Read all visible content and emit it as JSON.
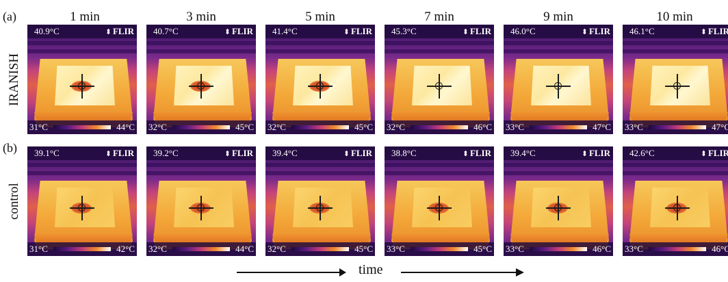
{
  "panel_a": "(a)",
  "panel_b": "(b)",
  "columns": [
    "1 min",
    "3 min",
    "5 min",
    "7 min",
    "9 min",
    "10 min"
  ],
  "rows": [
    {
      "label": "IRANISH",
      "variant": "iranish",
      "frames": [
        {
          "temp": "40.9°C",
          "logo": "FLIR",
          "scale_min": "31°C",
          "scale_max": "44°C",
          "spot": true
        },
        {
          "temp": "40.7°C",
          "logo": "FLIR",
          "scale_min": "32°C",
          "scale_max": "45°C",
          "spot": true
        },
        {
          "temp": "41.4°C",
          "logo": "FLIR",
          "scale_min": "32°C",
          "scale_max": "45°C",
          "spot": true
        },
        {
          "temp": "45.3°C",
          "logo": "FLIR",
          "scale_min": "32°C",
          "scale_max": "46°C",
          "spot": false
        },
        {
          "temp": "46.0°C",
          "logo": "FLIR",
          "scale_min": "33°C",
          "scale_max": "47°C",
          "spot": false
        },
        {
          "temp": "46.1°C",
          "logo": "FLIR",
          "scale_min": "33°C",
          "scale_max": "47°C",
          "spot": false
        }
      ]
    },
    {
      "label": "control",
      "variant": "control",
      "frames": [
        {
          "temp": "39.1°C",
          "logo": "FLIR",
          "scale_min": "31°C",
          "scale_max": "42°C",
          "spot": true
        },
        {
          "temp": "39.2°C",
          "logo": "FLIR",
          "scale_min": "32°C",
          "scale_max": "44°C",
          "spot": true
        },
        {
          "temp": "39.4°C",
          "logo": "FLIR",
          "scale_min": "32°C",
          "scale_max": "45°C",
          "spot": true
        },
        {
          "temp": "38.8°C",
          "logo": "FLIR",
          "scale_min": "33°C",
          "scale_max": "45°C",
          "spot": true
        },
        {
          "temp": "39.4°C",
          "logo": "FLIR",
          "scale_min": "33°C",
          "scale_max": "46°C",
          "spot": true
        },
        {
          "temp": "42.6°C",
          "logo": "FLIR",
          "scale_min": "33°C",
          "scale_max": "46°C",
          "spot": true
        }
      ]
    }
  ],
  "axis_label": "time",
  "icons": {
    "logo_arrow": "up-down-arrow-icon",
    "crosshair": "crosshair-icon"
  }
}
